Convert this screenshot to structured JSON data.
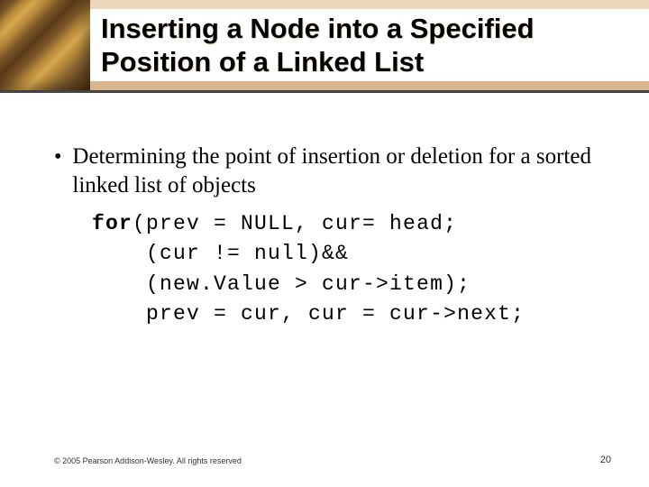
{
  "title": "Inserting a Node into a Specified Position of a Linked List",
  "bullet": "Determining the point of insertion or deletion for a sorted linked list of objects",
  "code": {
    "kw": "for",
    "l1_rest": "(prev = NULL, cur= head;",
    "l2": "(cur != null)&&",
    "l3": "(new.Value > cur->item);",
    "l4": "prev = cur, cur = cur->next;"
  },
  "footer": {
    "copyright": "© 2005 Pearson Addison-Wesley. All rights reserved",
    "page": "20"
  },
  "colors": {
    "band_light": "#c68a3a",
    "band_dark": "#b8792e",
    "divider": "#444444",
    "background": "#ffffff"
  },
  "fonts": {
    "title_family": "Arial",
    "title_size_pt": 23,
    "body_family": "Times New Roman",
    "body_size_pt": 19,
    "code_family": "Courier New",
    "code_size_pt": 17,
    "footer_size_pt": 7
  }
}
